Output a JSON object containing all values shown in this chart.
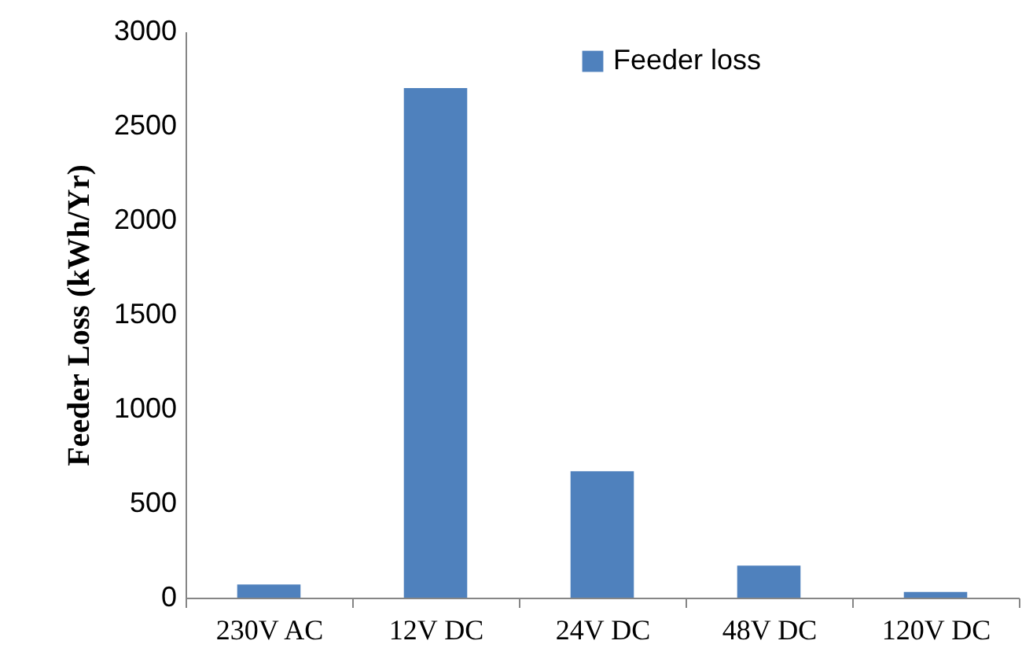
{
  "chart_data": {
    "type": "bar",
    "ylabel": "Feeder Loss (kWh/Yr)",
    "categories": [
      "230V AC",
      "12V DC",
      "24V DC",
      "48V DC",
      "120V DC"
    ],
    "series": [
      {
        "name": "Feeder loss",
        "color": "#4f81bd",
        "values": [
          70,
          2700,
          670,
          170,
          30
        ]
      }
    ],
    "ylim": [
      0,
      3000
    ],
    "yticks": [
      0,
      500,
      1000,
      1500,
      2000,
      2500,
      3000
    ],
    "grid": false,
    "legend": "top right"
  }
}
